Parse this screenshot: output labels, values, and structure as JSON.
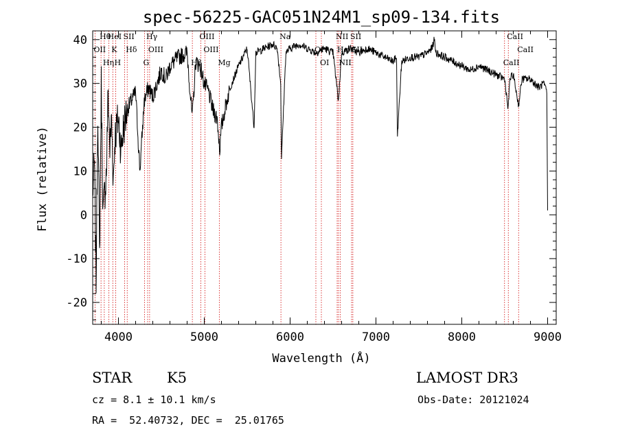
{
  "chart_data": {
    "type": "line",
    "title": "spec-56225-GAC051N24M1_sp09-134.fits",
    "xlabel": "Wavelength (Å)",
    "ylabel": "Flux (relative)",
    "xlim": [
      3700,
      9100
    ],
    "ylim": [
      -25,
      42
    ],
    "xticks": [
      4000,
      5000,
      6000,
      7000,
      8000,
      9000
    ],
    "yticks": [
      -20,
      -10,
      0,
      10,
      20,
      30,
      40
    ],
    "series": [
      {
        "name": "flux",
        "x": [
          3700,
          3720,
          3740,
          3760,
          3780,
          3800,
          3820,
          3840,
          3860,
          3880,
          3900,
          3920,
          3940,
          3960,
          3980,
          4000,
          4030,
          4060,
          4100,
          4150,
          4200,
          4250,
          4300,
          4350,
          4400,
          4450,
          4500,
          4550,
          4600,
          4700,
          4800,
          4860,
          4900,
          4950,
          5000,
          5050,
          5100,
          5150,
          5180,
          5200,
          5250,
          5300,
          5400,
          5500,
          5580,
          5600,
          5700,
          5800,
          5850,
          5890,
          5900,
          5950,
          6000,
          6100,
          6200,
          6300,
          6400,
          6500,
          6563,
          6600,
          6700,
          6800,
          6900,
          7000,
          7100,
          7200,
          7240,
          7250,
          7300,
          7400,
          7500,
          7600,
          7650,
          7680,
          7700,
          7800,
          7900,
          8000,
          8100,
          8200,
          8300,
          8400,
          8500,
          8540,
          8560,
          8600,
          8662,
          8700,
          8800,
          8900,
          8950,
          8990,
          9000
        ],
        "y": [
          5,
          12,
          -15,
          25,
          -10,
          30,
          0,
          5,
          10,
          28,
          15,
          22,
          8,
          18,
          20,
          22,
          15,
          20,
          24,
          26,
          28,
          10,
          26,
          29,
          27,
          30,
          33,
          31,
          34,
          36,
          37,
          22,
          35,
          34,
          30,
          28,
          24,
          22,
          15,
          20,
          25,
          29,
          34,
          38,
          20,
          37,
          38,
          39,
          38,
          30,
          13,
          37,
          38,
          39,
          38,
          37,
          38,
          37,
          26,
          37,
          38,
          37,
          38,
          37,
          36,
          35,
          36,
          18,
          35,
          36,
          36,
          37,
          38,
          40,
          37,
          36,
          35,
          34,
          33,
          34,
          33,
          32,
          31,
          24,
          31,
          32,
          25,
          31,
          31,
          29,
          30,
          28,
          1
        ]
      }
    ],
    "lines": [
      {
        "name": "Hθ",
        "x": 3797
      },
      {
        "name": "OII",
        "x": 3727
      },
      {
        "name": "Hη",
        "x": 3835
      },
      {
        "name": "HeI",
        "x": 3889
      },
      {
        "name": "K",
        "x": 3934
      },
      {
        "name": "H",
        "x": 3968
      },
      {
        "name": "SII",
        "x": 4072
      },
      {
        "name": "Hδ",
        "x": 4102
      },
      {
        "name": "G",
        "x": 4304
      },
      {
        "name": "Hγ",
        "x": 4340
      },
      {
        "name": "OIII",
        "x": 4363
      },
      {
        "name": "Hβ",
        "x": 4861
      },
      {
        "name": "OIII",
        "x": 4959
      },
      {
        "name": "OIII",
        "x": 5007
      },
      {
        "name": "Mg",
        "x": 5175
      },
      {
        "name": "Na",
        "x": 5893
      },
      {
        "name": "OI",
        "x": 6300
      },
      {
        "name": "OI",
        "x": 6364
      },
      {
        "name": "NII",
        "x": 6548
      },
      {
        "name": "Hα",
        "x": 6563
      },
      {
        "name": "NII",
        "x": 6583
      },
      {
        "name": "SII",
        "x": 6716
      },
      {
        "name": "SII",
        "x": 6731
      },
      {
        "name": "CaII",
        "x": 8498
      },
      {
        "name": "CaII",
        "x": 8542
      },
      {
        "name": "CaII",
        "x": 8662
      }
    ]
  },
  "info": {
    "object_class": "STAR",
    "subclass": "K5",
    "survey": "LAMOST DR3",
    "cz": "cz = 8.1 ± 10.1 km/s",
    "obs_date": "Obs-Date: 20121024",
    "coords": "RA =  52.40732, DEC =  25.01765"
  }
}
